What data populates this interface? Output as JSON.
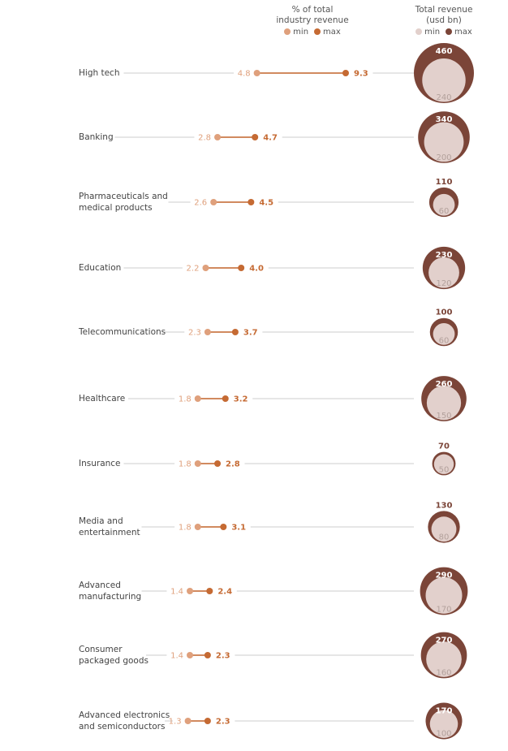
{
  "header": {
    "pct_title_line1": "% of total",
    "pct_title_line2": "industry revenue",
    "rev_title_line1": "Total revenue",
    "rev_title_line2": "(usd bn)",
    "min_label": "min",
    "max_label": "max"
  },
  "colors": {
    "pct_min": "#dfa07c",
    "pct_max": "#c56a33",
    "pct_line": "#d18a5f",
    "rev_min": "#e2d0cc",
    "rev_max": "#7b4538",
    "gridline": "#cccccc",
    "label": "#444444"
  },
  "chart_data": {
    "type": "dumbbell_with_bubbles",
    "categories": [
      "High tech",
      "Banking",
      "Pharmaceuticals and\nmedical products",
      "Education",
      "Telecommunications",
      "Healthcare",
      "Insurance",
      "Media and\nentertainment",
      "Advanced\nmanufacturing",
      "Consumer\npackaged goods",
      "Advanced electronics\nand semiconductors"
    ],
    "pct_min": [
      4.8,
      2.8,
      2.6,
      2.2,
      2.3,
      1.8,
      1.8,
      1.8,
      1.4,
      1.4,
      1.3
    ],
    "pct_max": [
      9.3,
      4.7,
      4.5,
      4.0,
      3.7,
      3.2,
      2.8,
      3.1,
      2.4,
      2.3,
      2.3
    ],
    "pct_min_labels": [
      "4.8",
      "2.8",
      "2.6",
      "2.2",
      "2.3",
      "1.8",
      "1.8",
      "1.8",
      "1.4",
      "1.4",
      "1.3"
    ],
    "pct_max_labels": [
      "9.3",
      "4.7",
      "4.5",
      "4.0",
      "3.7",
      "3.2",
      "2.8",
      "3.1",
      "2.4",
      "2.3",
      "2.3"
    ],
    "revenue_min": [
      240,
      200,
      60,
      120,
      60,
      150,
      50,
      80,
      170,
      160,
      100
    ],
    "revenue_max": [
      460,
      340,
      110,
      230,
      100,
      260,
      70,
      130,
      290,
      270,
      170
    ],
    "revenue_min_labels": [
      "240",
      "200",
      "60",
      "120",
      "60",
      "150",
      "50",
      "80",
      "170",
      "160",
      "100"
    ],
    "revenue_max_labels": [
      "460",
      "340",
      "110",
      "230",
      "100",
      "260",
      "70",
      "130",
      "290",
      "270",
      "170"
    ],
    "pct_axis_range": [
      0,
      10
    ]
  }
}
